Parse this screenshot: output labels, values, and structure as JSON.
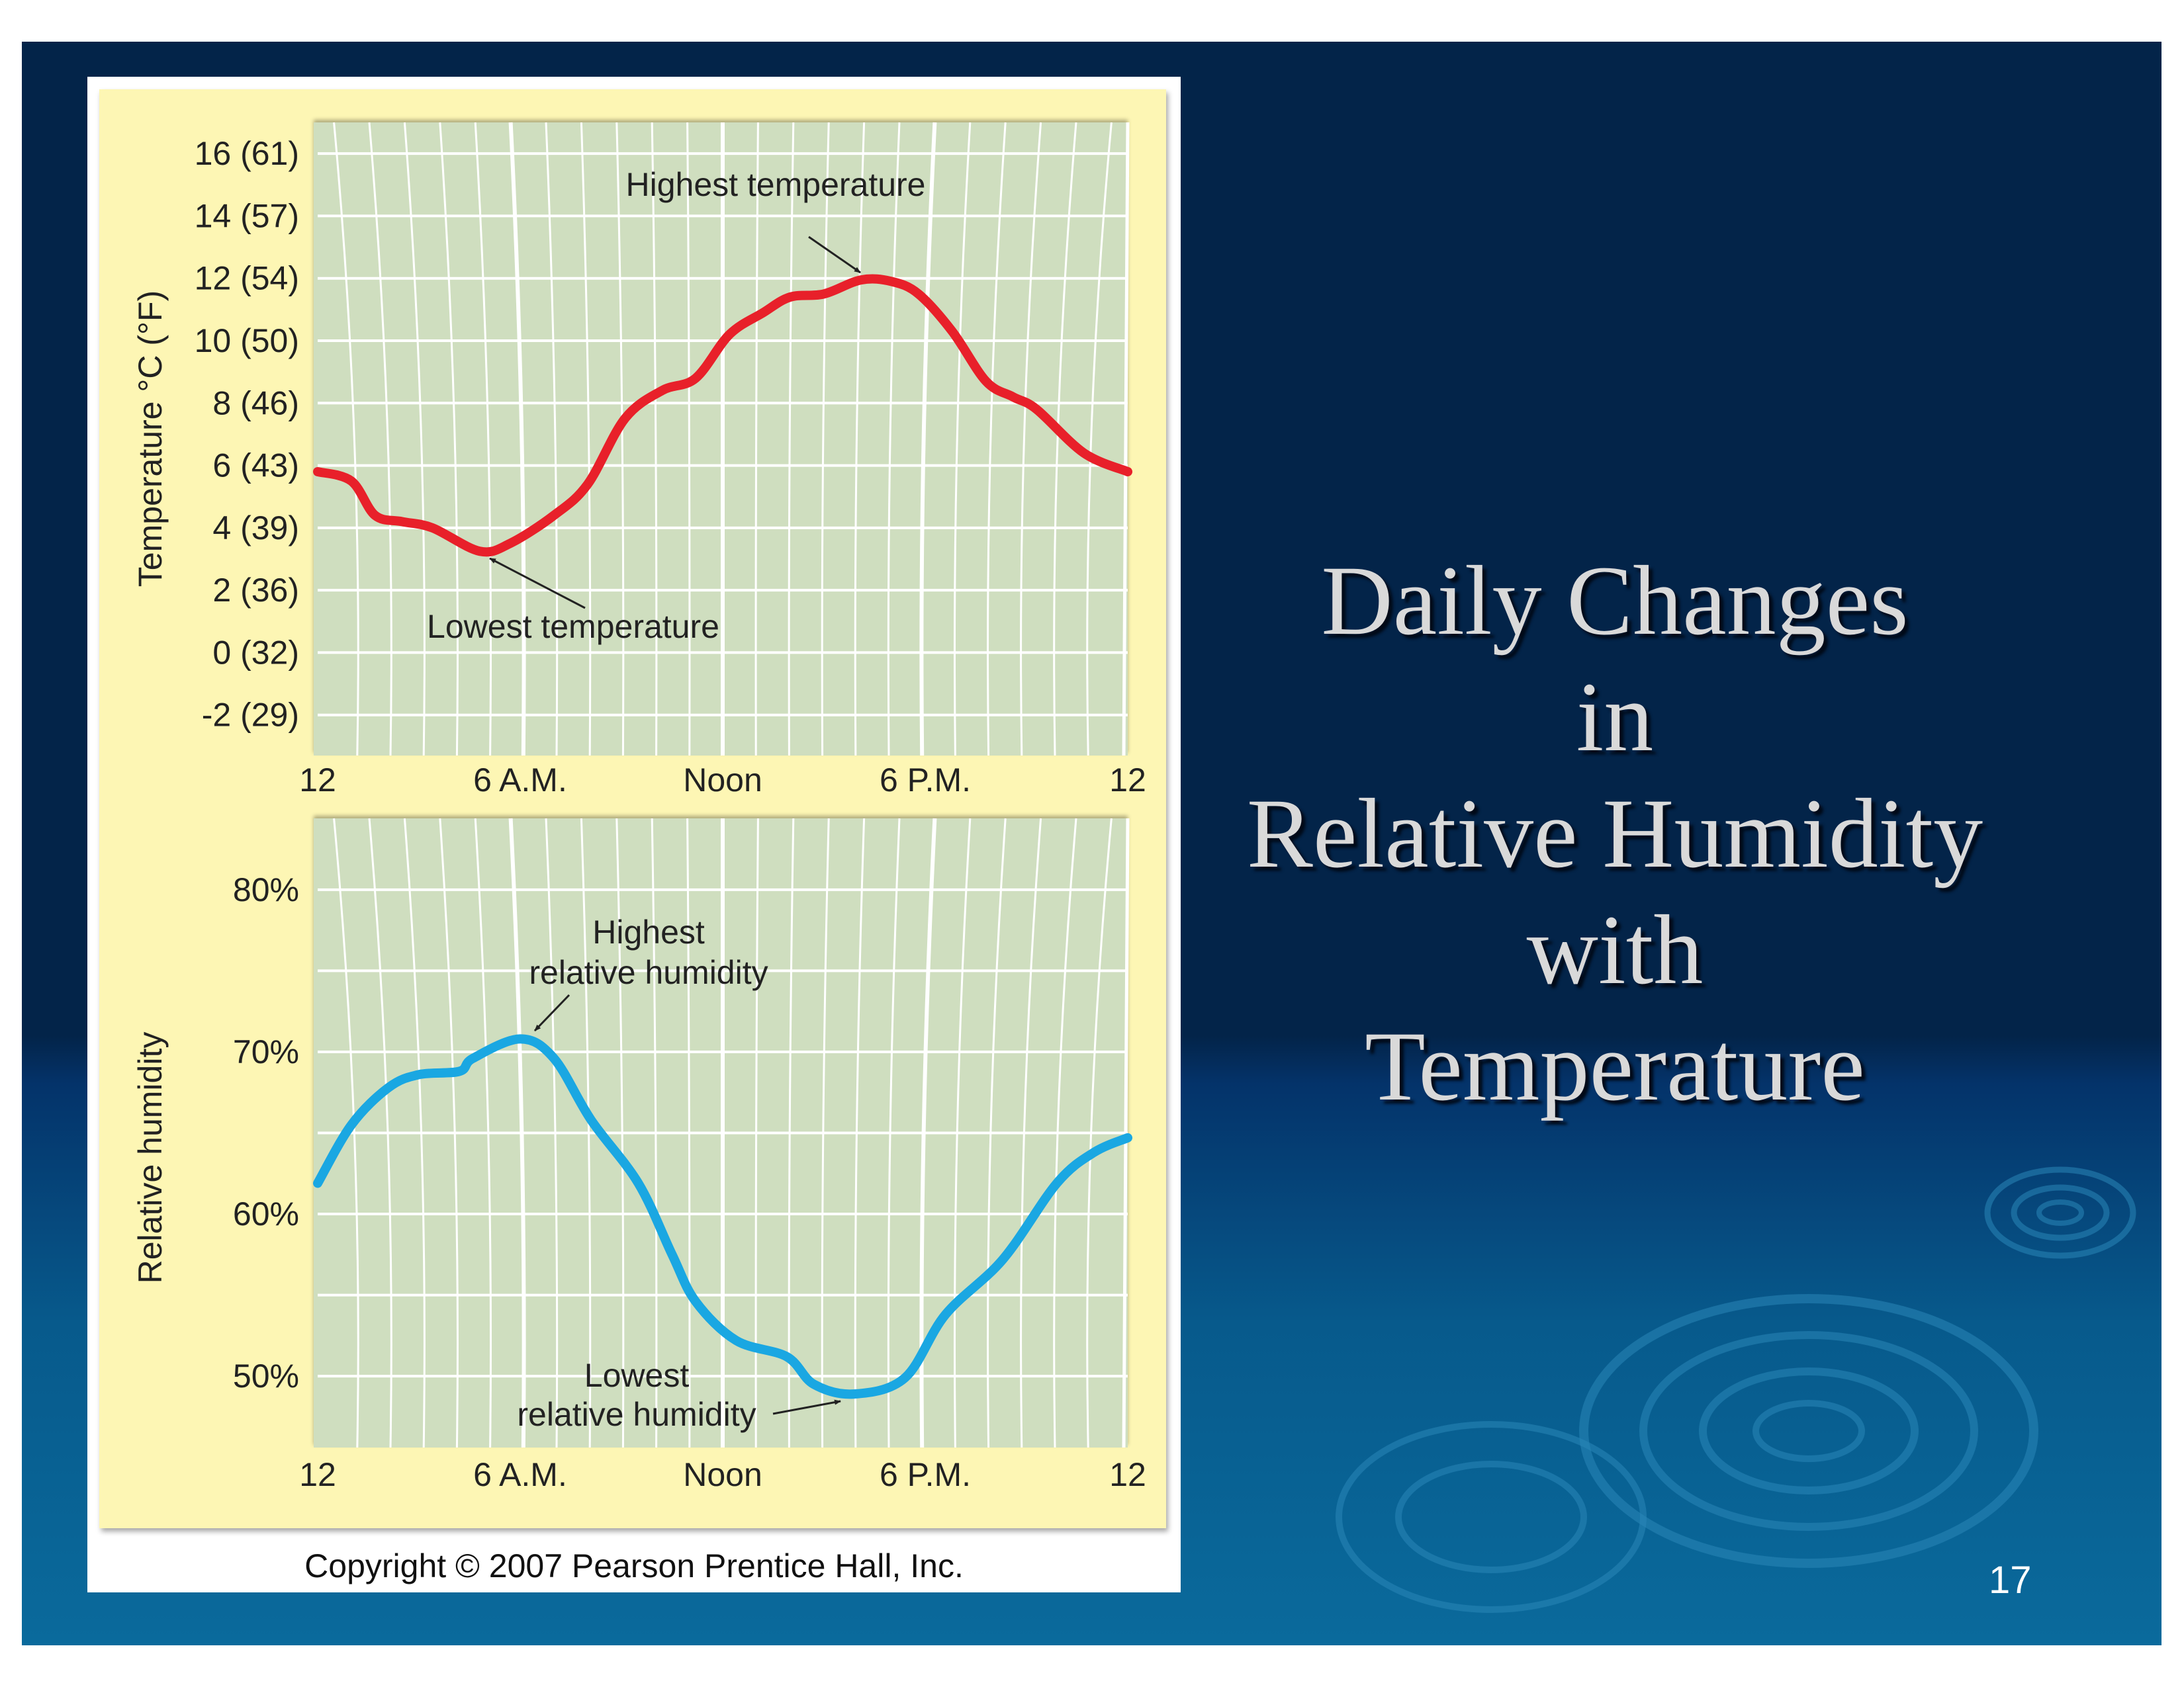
{
  "slide": {
    "title_lines": [
      "Daily Changes",
      "in",
      "Relative Humidity",
      "with",
      "Temperature"
    ],
    "page_number": "17",
    "copyright": "Copyright © 2007 Pearson Prentice Hall, Inc.",
    "colors": {
      "background_top": "#032449",
      "background_bottom": "#0a6a9c",
      "panel": "#fdf6b4",
      "plot": "#cfdebf",
      "temperature_line": "#e8202a",
      "humidity_line": "#1aa7e2"
    }
  },
  "chart_data": [
    {
      "type": "line",
      "title": "",
      "xlabel": "",
      "ylabel": "Temperature °C (°F)",
      "x_ticks": [
        {
          "value": 0,
          "label": "12"
        },
        {
          "value": 6,
          "label": "6 A.M."
        },
        {
          "value": 12,
          "label": "Noon"
        },
        {
          "value": 18,
          "label": "6 P.M."
        },
        {
          "value": 24,
          "label": "12"
        }
      ],
      "y_ticks": [
        {
          "value": 16,
          "label": "16 (61)"
        },
        {
          "value": 14,
          "label": "14 (57)"
        },
        {
          "value": 12,
          "label": "12 (54)"
        },
        {
          "value": 10,
          "label": "10 (50)"
        },
        {
          "value": 8,
          "label": "8 (46)"
        },
        {
          "value": 6,
          "label": "6 (43)"
        },
        {
          "value": 4,
          "label": "4 (39)"
        },
        {
          "value": 2,
          "label": "2 (36)"
        },
        {
          "value": 0,
          "label": "0 (32)"
        },
        {
          "value": -2,
          "label": "-2 (29)"
        }
      ],
      "xlim": [
        0,
        24
      ],
      "ylim": [
        -3.3,
        17
      ],
      "grid": true,
      "series": [
        {
          "name": "Temperature",
          "x": [
            0,
            1,
            1.7,
            2.5,
            3.4,
            4.8,
            5.7,
            7,
            8,
            9.1,
            10.2,
            11.2,
            12.2,
            13.2,
            14,
            15,
            16.1,
            17,
            17.8,
            18.8,
            19.8,
            20.6,
            21.3,
            22.7,
            24
          ],
          "y": [
            5.8,
            5.5,
            4.4,
            4.2,
            4.0,
            3.25,
            3.5,
            4.4,
            5.4,
            7.5,
            8.4,
            8.8,
            10.2,
            10.9,
            11.4,
            11.5,
            11.95,
            11.9,
            11.5,
            10.3,
            8.7,
            8.2,
            7.8,
            6.4,
            5.8
          ]
        }
      ],
      "annotations": [
        {
          "text": "Highest temperature",
          "x": 16.1,
          "y": 12
        },
        {
          "text": "Lowest temperature",
          "x": 4.8,
          "y": 3.3
        }
      ]
    },
    {
      "type": "line",
      "title": "",
      "xlabel": "",
      "ylabel": "Relative humidity",
      "x_ticks": [
        {
          "value": 0,
          "label": "12"
        },
        {
          "value": 6,
          "label": "6 A.M."
        },
        {
          "value": 12,
          "label": "Noon"
        },
        {
          "value": 18,
          "label": "6 P.M."
        },
        {
          "value": 24,
          "label": "12"
        }
      ],
      "y_ticks": [
        {
          "value": 80,
          "label": "80%"
        },
        {
          "value": 70,
          "label": "70%"
        },
        {
          "value": 60,
          "label": "60%"
        },
        {
          "value": 50,
          "label": "50%"
        }
      ],
      "y_grid_step": 5,
      "xlim": [
        0,
        24
      ],
      "ylim": [
        45.6,
        84.4
      ],
      "grid": true,
      "series": [
        {
          "name": "Relative humidity",
          "x": [
            0,
            1,
            2.1,
            3,
            4.2,
            4.6,
            6,
            7,
            8.1,
            9.5,
            10.5,
            11.2,
            12.4,
            13.9,
            14.7,
            15.9,
            17.4,
            18.6,
            20.3,
            21.9,
            23,
            24
          ],
          "y": [
            61.9,
            65.5,
            67.8,
            68.6,
            68.8,
            69.6,
            70.8,
            69.6,
            65.8,
            61.9,
            57.5,
            54.6,
            52.2,
            51.2,
            49.5,
            48.9,
            49.9,
            53.8,
            57.2,
            61.9,
            63.8,
            64.7
          ]
        }
      ],
      "annotations": [
        {
          "text_lines": [
            "Highest",
            "relative humidity"
          ],
          "x": 6,
          "y": 70.8
        },
        {
          "text_lines": [
            "Lowest",
            "relative humidity"
          ],
          "x": 15.9,
          "y": 48.9
        }
      ]
    }
  ]
}
